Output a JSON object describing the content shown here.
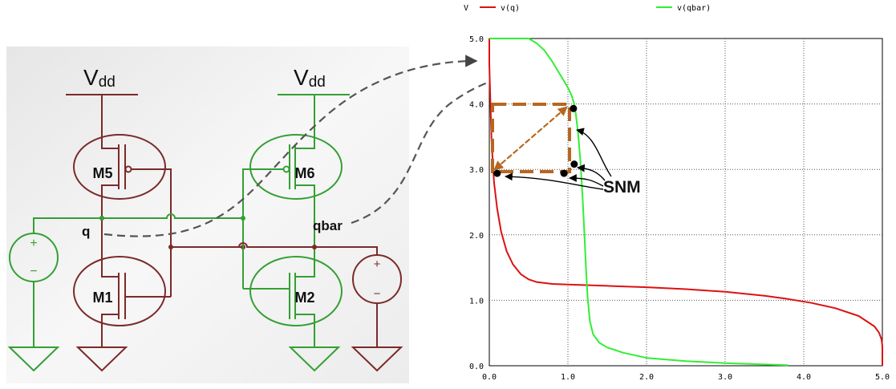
{
  "schematic": {
    "vdd_left_base": "V",
    "vdd_left_sub": "dd",
    "vdd_right_base": "V",
    "vdd_right_sub": "dd",
    "transistors": [
      "M5",
      "M6",
      "M1",
      "M2"
    ],
    "node_q": "q",
    "node_qbar": "qbar",
    "source_plus": "+",
    "source_minus": "−"
  },
  "chart_data": {
    "type": "line",
    "ylabel": "V",
    "xlim": [
      0,
      5
    ],
    "ylim": [
      0,
      5
    ],
    "grid": true,
    "legend_placement": "top",
    "x_ticks": [
      "0.0",
      "1.0",
      "2.0",
      "3.0",
      "4.0",
      "5.0"
    ],
    "y_ticks": [
      "0.0",
      "1.0",
      "2.0",
      "3.0",
      "4.0",
      "5.0"
    ],
    "series": [
      {
        "name": "v(q)",
        "color": "#dd1111",
        "x": [
          0.0,
          0.0,
          0.03,
          0.06,
          0.1,
          0.15,
          0.22,
          0.3,
          0.4,
          0.5,
          0.6,
          0.8,
          1.0,
          1.5,
          2.0,
          2.5,
          3.0,
          3.5,
          3.8,
          4.1,
          4.4,
          4.7,
          4.9,
          4.96,
          4.99,
          5.0,
          5.0
        ],
        "y": [
          5.0,
          4.6,
          3.4,
          2.8,
          2.4,
          2.05,
          1.75,
          1.55,
          1.4,
          1.32,
          1.28,
          1.25,
          1.24,
          1.22,
          1.2,
          1.17,
          1.13,
          1.07,
          1.02,
          0.96,
          0.88,
          0.76,
          0.6,
          0.5,
          0.4,
          0.3,
          0.0
        ]
      },
      {
        "name": "v(qbar)",
        "color": "#33ee33",
        "x": [
          0.0,
          0.3,
          0.5,
          0.6,
          0.7,
          0.8,
          0.9,
          1.0,
          1.05,
          1.08,
          1.1,
          1.13,
          1.16,
          1.19,
          1.21,
          1.23,
          1.25,
          1.28,
          1.32,
          1.4,
          1.5,
          1.7,
          2.0,
          2.5,
          3.0,
          3.5,
          3.8
        ],
        "y": [
          5.0,
          5.0,
          5.0,
          4.93,
          4.82,
          4.65,
          4.45,
          4.25,
          4.12,
          4.0,
          3.85,
          3.55,
          3.1,
          2.5,
          2.0,
          1.5,
          1.05,
          0.68,
          0.48,
          0.35,
          0.28,
          0.2,
          0.12,
          0.07,
          0.04,
          0.02,
          0.01
        ]
      }
    ],
    "annotations": [
      {
        "text": "SNM",
        "target": "noise margin square",
        "square_x": [
          0.05,
          1.0
        ],
        "square_y": [
          3.0,
          4.0
        ]
      }
    ],
    "dots": [
      {
        "x": 1.07,
        "y": 3.93
      },
      {
        "x": 1.08,
        "y": 3.08
      },
      {
        "x": 0.1,
        "y": 2.94
      },
      {
        "x": 0.95,
        "y": 2.94
      }
    ]
  }
}
